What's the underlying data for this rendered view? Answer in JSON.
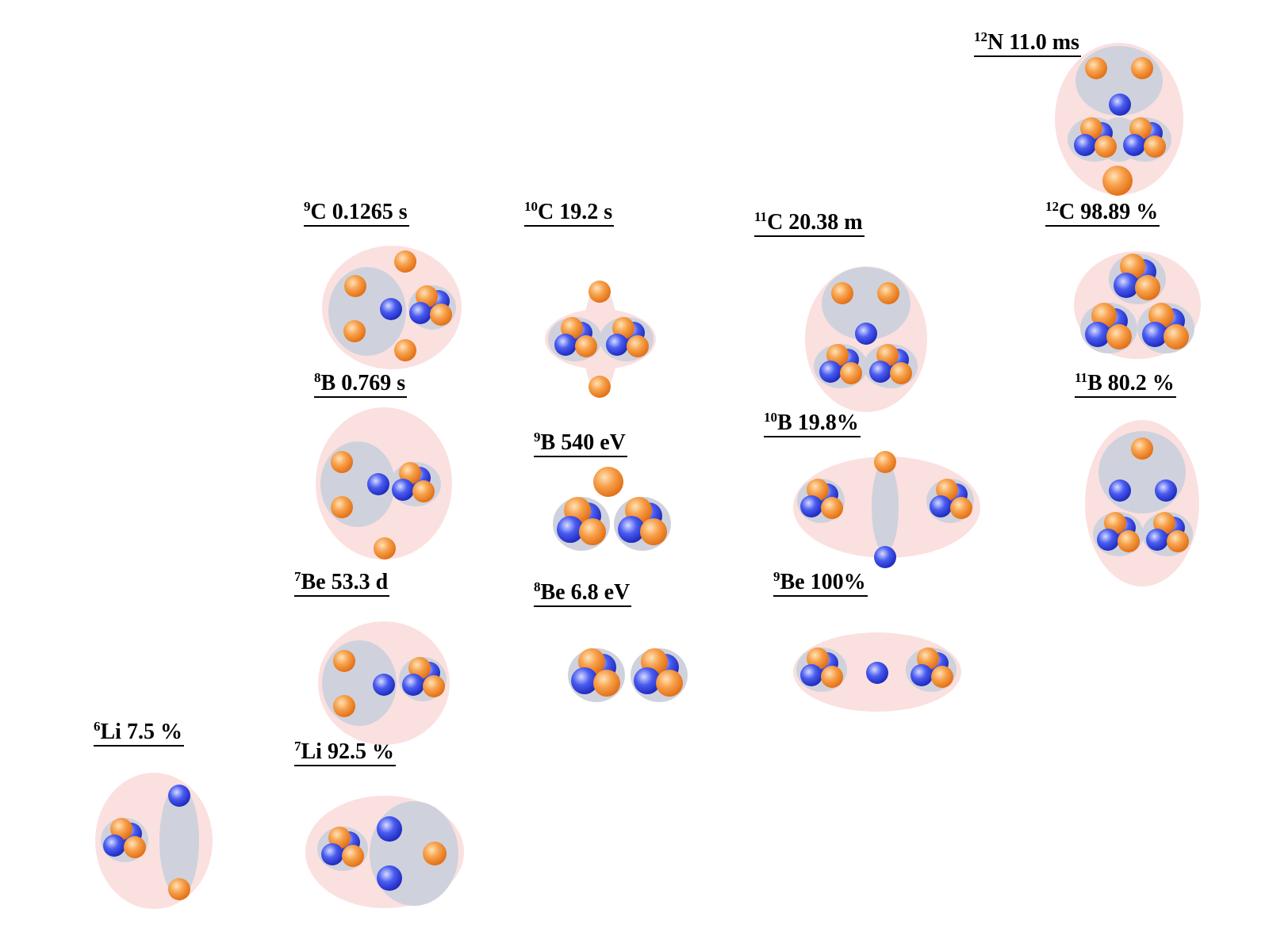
{
  "colors": {
    "background": "#ffffff",
    "nucleus_halo": "#fbe0e0",
    "cluster_halo": "#cfd2dc",
    "proton": "#f28a2a",
    "neutron": "#2f42e0",
    "label_text": "#000000"
  },
  "legend_icons": {
    "proton": "orange-sphere",
    "neutron": "blue-sphere"
  },
  "nuclei": [
    {
      "id": "n12",
      "mass": "12",
      "symbol": "N",
      "value": "11.0 ms"
    },
    {
      "id": "c9",
      "mass": "9",
      "symbol": "C",
      "value": "0.1265 s"
    },
    {
      "id": "c10",
      "mass": "10",
      "symbol": "C",
      "value": "19.2 s"
    },
    {
      "id": "c11",
      "mass": "11",
      "symbol": "C",
      "value": "20.38 m"
    },
    {
      "id": "c12",
      "mass": "12",
      "symbol": "C",
      "value": "98.89 %"
    },
    {
      "id": "b8",
      "mass": "8",
      "symbol": "B",
      "value": "0.769 s"
    },
    {
      "id": "b9",
      "mass": "9",
      "symbol": "B",
      "value": "540 eV"
    },
    {
      "id": "b10",
      "mass": "10",
      "symbol": "B",
      "value": "19.8%"
    },
    {
      "id": "b11",
      "mass": "11",
      "symbol": "B",
      "value": "80.2 %"
    },
    {
      "id": "be7",
      "mass": "7",
      "symbol": "Be",
      "value": "53.3 d"
    },
    {
      "id": "be8",
      "mass": "8",
      "symbol": "Be",
      "value": "6.8 eV"
    },
    {
      "id": "be9",
      "mass": "9",
      "symbol": "Be",
      "value": "100%"
    },
    {
      "id": "li6",
      "mass": "6",
      "symbol": "Li",
      "value": "7.5 %"
    },
    {
      "id": "li7",
      "mass": "7",
      "symbol": "Li",
      "value": "92.5 %"
    }
  ]
}
